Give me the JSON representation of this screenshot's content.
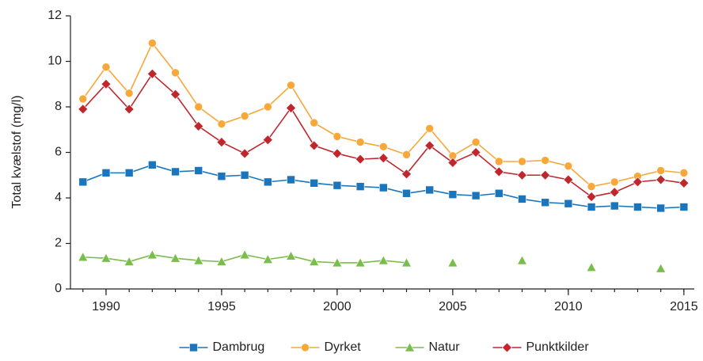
{
  "chart_data": {
    "type": "line",
    "ylabel": "Total kvælstof (mg/l)",
    "x": [
      1989,
      1990,
      1991,
      1992,
      1993,
      1994,
      1995,
      1996,
      1997,
      1998,
      1999,
      2000,
      2001,
      2002,
      2003,
      2004,
      2005,
      2006,
      2007,
      2008,
      2009,
      2010,
      2011,
      2012,
      2013,
      2014,
      2015
    ],
    "xlim": [
      1988.46,
      2015.45
    ],
    "xticks": [
      1990,
      1995,
      2000,
      2005,
      2010,
      2015
    ],
    "ylim": [
      0,
      12
    ],
    "yticks": [
      0,
      2,
      4,
      6,
      8,
      10,
      12
    ],
    "legend": "bottom",
    "series": [
      {
        "name": "Dambrug",
        "color": "#1a75bc",
        "marker": "square",
        "values": [
          4.7,
          5.1,
          5.1,
          5.45,
          5.15,
          5.2,
          4.95,
          5.0,
          4.7,
          4.8,
          4.65,
          4.55,
          4.5,
          4.45,
          4.2,
          4.35,
          4.15,
          4.1,
          4.2,
          3.95,
          3.8,
          3.75,
          3.6,
          3.65,
          3.6,
          3.55,
          3.6
        ]
      },
      {
        "name": "Dyrket",
        "color": "#f7a839",
        "marker": "circle",
        "values": [
          8.35,
          9.75,
          8.6,
          10.8,
          9.5,
          8.0,
          7.25,
          7.6,
          8.0,
          8.95,
          7.3,
          6.7,
          6.45,
          6.25,
          5.9,
          7.05,
          5.85,
          6.45,
          5.6,
          5.6,
          5.65,
          5.4,
          4.5,
          4.7,
          4.95,
          5.2,
          5.1
        ]
      },
      {
        "name": "Natur",
        "color": "#79bd4a",
        "marker": "triangle",
        "values": [
          1.4,
          1.35,
          1.2,
          1.5,
          1.35,
          1.25,
          1.2,
          1.5,
          1.3,
          1.45,
          1.2,
          1.15,
          1.15,
          1.25,
          1.15,
          null,
          1.15,
          null,
          null,
          1.25,
          null,
          null,
          0.95,
          null,
          null,
          0.9,
          null
        ]
      },
      {
        "name": "Punktkilder",
        "color": "#c0272d",
        "marker": "diamond",
        "values": [
          7.9,
          9.0,
          7.9,
          9.45,
          8.55,
          7.15,
          6.45,
          5.95,
          6.55,
          7.95,
          6.3,
          5.95,
          5.7,
          5.75,
          5.05,
          6.3,
          5.55,
          6.0,
          5.15,
          5.0,
          5.0,
          4.8,
          4.05,
          4.25,
          4.7,
          4.8,
          4.65
        ]
      }
    ]
  }
}
